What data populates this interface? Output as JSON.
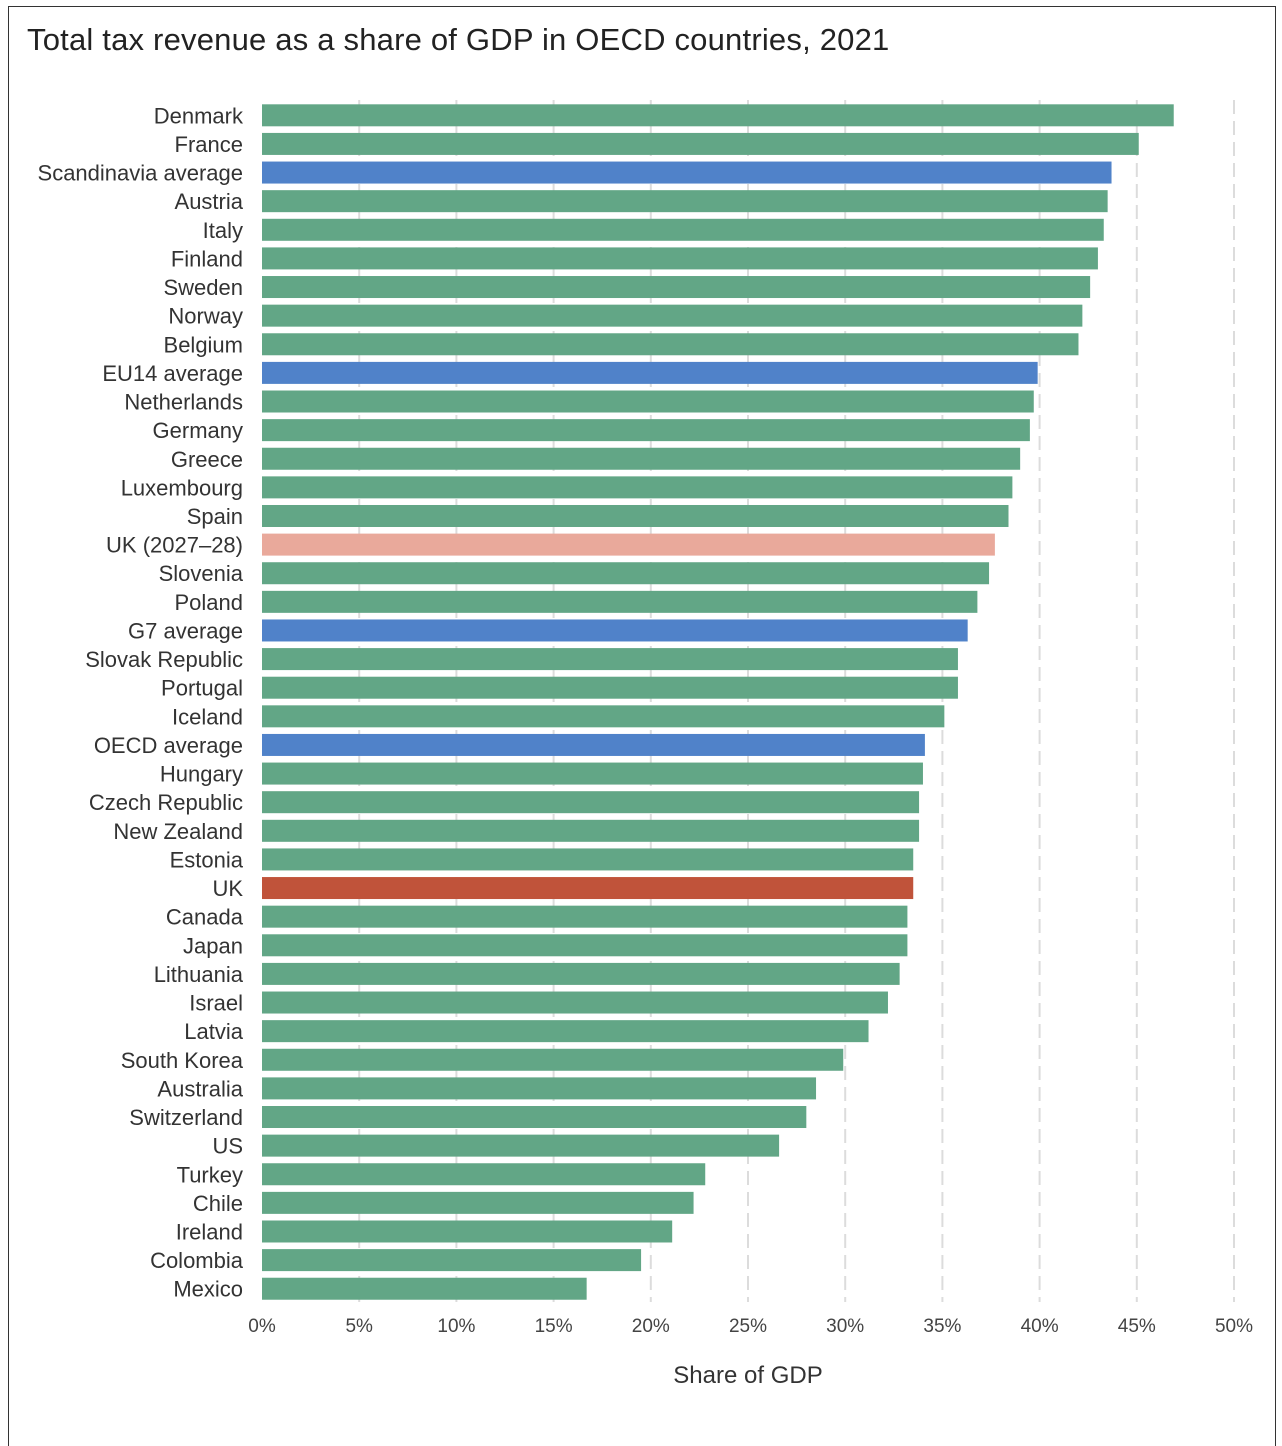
{
  "chart_data": {
    "type": "bar",
    "orientation": "horizontal",
    "title": "Total tax revenue as a share of GDP in OECD countries, 2021",
    "xlabel": "Share of GDP",
    "ylabel": "",
    "xlim": [
      0,
      50
    ],
    "x_ticks": [
      0,
      5,
      10,
      15,
      20,
      25,
      30,
      35,
      40,
      45,
      50
    ],
    "x_tick_labels": [
      "0%",
      "5%",
      "10%",
      "15%",
      "20%",
      "25%",
      "30%",
      "35%",
      "40%",
      "45%",
      "50%"
    ],
    "grid": "vertical dashed",
    "categories": [
      "Denmark",
      "France",
      "Scandinavia average",
      "Austria",
      "Italy",
      "Finland",
      "Sweden",
      "Norway",
      "Belgium",
      "EU14 average",
      "Netherlands",
      "Germany",
      "Greece",
      "Luxembourg",
      "Spain",
      "UK (2027–28)",
      "Slovenia",
      "Poland",
      "G7 average",
      "Slovak Republic",
      "Portugal",
      "Iceland",
      "OECD average",
      "Hungary",
      "Czech Republic",
      "New Zealand",
      "Estonia",
      "UK",
      "Canada",
      "Japan",
      "Lithuania",
      "Israel",
      "Latvia",
      "South Korea",
      "Australia",
      "Switzerland",
      "US",
      "Turkey",
      "Chile",
      "Ireland",
      "Colombia",
      "Mexico"
    ],
    "values": [
      46.9,
      45.1,
      43.7,
      43.5,
      43.3,
      43.0,
      42.6,
      42.2,
      42.0,
      39.9,
      39.7,
      39.5,
      39.0,
      38.6,
      38.4,
      37.7,
      37.4,
      36.8,
      36.3,
      35.8,
      35.8,
      35.1,
      34.1,
      34.0,
      33.8,
      33.8,
      33.5,
      33.5,
      33.2,
      33.2,
      32.8,
      32.2,
      31.2,
      29.9,
      28.5,
      28.0,
      26.6,
      22.8,
      22.2,
      21.1,
      19.5,
      16.7
    ],
    "groups": [
      "country",
      "country",
      "average",
      "country",
      "country",
      "country",
      "country",
      "country",
      "country",
      "average",
      "country",
      "country",
      "country",
      "country",
      "country",
      "uk_forecast",
      "country",
      "country",
      "average",
      "country",
      "country",
      "country",
      "average",
      "country",
      "country",
      "country",
      "country",
      "uk",
      "country",
      "country",
      "country",
      "country",
      "country",
      "country",
      "country",
      "country",
      "country",
      "country",
      "country",
      "country",
      "country",
      "country"
    ],
    "colors": {
      "country": "#62a686",
      "average": "#5082c9",
      "uk": "#c0533a",
      "uk_forecast": "#e9a99b",
      "grid": "#dcdcdc",
      "text": "#333333"
    }
  }
}
